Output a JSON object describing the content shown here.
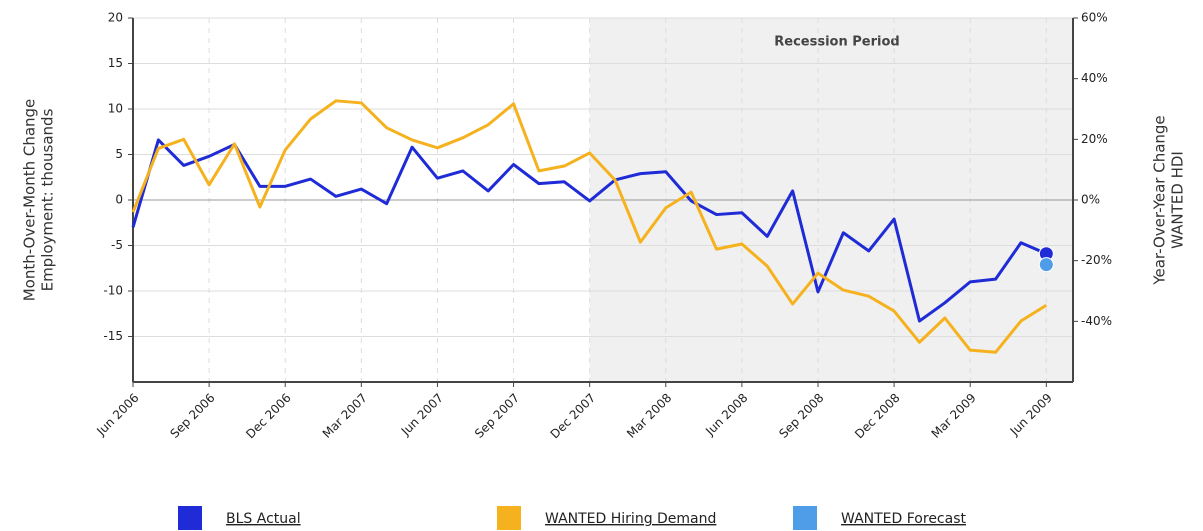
{
  "chart_data": {
    "type": "line",
    "categories": [
      "Jun 2006",
      null,
      null,
      "Sep 2006",
      null,
      null,
      "Dec 2006",
      null,
      null,
      "Mar 2007",
      null,
      null,
      "Jun 2007",
      null,
      null,
      "Sep 2007",
      null,
      null,
      "Dec 2007",
      null,
      null,
      "Mar 2008",
      null,
      null,
      "Jun 2008",
      null,
      null,
      "Sep 2008",
      null,
      null,
      "Dec 2008",
      null,
      null,
      "Mar 2009",
      null,
      null,
      "Jun 2009"
    ],
    "ylabel": [
      "Month-Over-Month Change",
      "Employment: thousands"
    ],
    "y2label": [
      "Year-Over-Year Change",
      "WANTED HDI"
    ],
    "ylim": [
      -20,
      20
    ],
    "yticks": [
      -15,
      -10,
      -5,
      0,
      5,
      10,
      15,
      20
    ],
    "y2lim": [
      -60,
      60
    ],
    "y2ticks": [
      {
        "value": -40,
        "label": "-40%"
      },
      {
        "value": -20,
        "label": "-20%"
      },
      {
        "value": 0,
        "label": "0%"
      },
      {
        "value": 20,
        "label": "20%"
      },
      {
        "value": 40,
        "label": "40%"
      },
      {
        "value": 60,
        "label": "60%"
      }
    ],
    "grid": true,
    "recession": {
      "label": "Recession Period",
      "start": "Dec 2007"
    },
    "legend": "bottom",
    "series": [
      {
        "name": "BLS Actual",
        "color": "#1f2bd6",
        "axis": "y",
        "values": [
          -3,
          6.6,
          3.8,
          4.8,
          6.1,
          1.5,
          1.5,
          2.3,
          0.4,
          1.2,
          -0.4,
          5.8,
          2.4,
          3.2,
          1.0,
          3.9,
          1.8,
          2.0,
          -0.1,
          2.2,
          2.9,
          3.1,
          -0.1,
          -1.6,
          -1.4,
          -4,
          1.0,
          -10.1,
          -3.6,
          -5.6,
          -2.1,
          -13.3,
          -11.3,
          -9.0,
          -8.7,
          -4.7,
          -5.9
        ]
      },
      {
        "name": "WANTED Hiring Demand",
        "color": "#f5b21e",
        "axis": "y2",
        "values": [
          -4,
          17,
          20,
          5,
          18.5,
          -2.3,
          16.5,
          26.7,
          32.7,
          32,
          23.8,
          19.8,
          17.2,
          20.5,
          24.8,
          31.7,
          9.6,
          11.2,
          15.5,
          6.6,
          -13.9,
          -2.6,
          2.6,
          -16.2,
          -14.5,
          -21.8,
          -34.3,
          -24.1,
          -29.7,
          -31.7,
          -36.6,
          -46.9,
          -38.9,
          -49.5,
          -50.2,
          -39.9,
          -34.7
        ]
      },
      {
        "name": "WANTED Forecast",
        "color": "#4f9de8",
        "axis": "y",
        "values": [
          null,
          null,
          null,
          null,
          null,
          null,
          null,
          null,
          null,
          null,
          null,
          null,
          null,
          null,
          null,
          null,
          null,
          null,
          null,
          null,
          null,
          null,
          null,
          null,
          null,
          null,
          null,
          null,
          null,
          null,
          null,
          null,
          null,
          null,
          null,
          null,
          -7.1
        ]
      }
    ]
  }
}
